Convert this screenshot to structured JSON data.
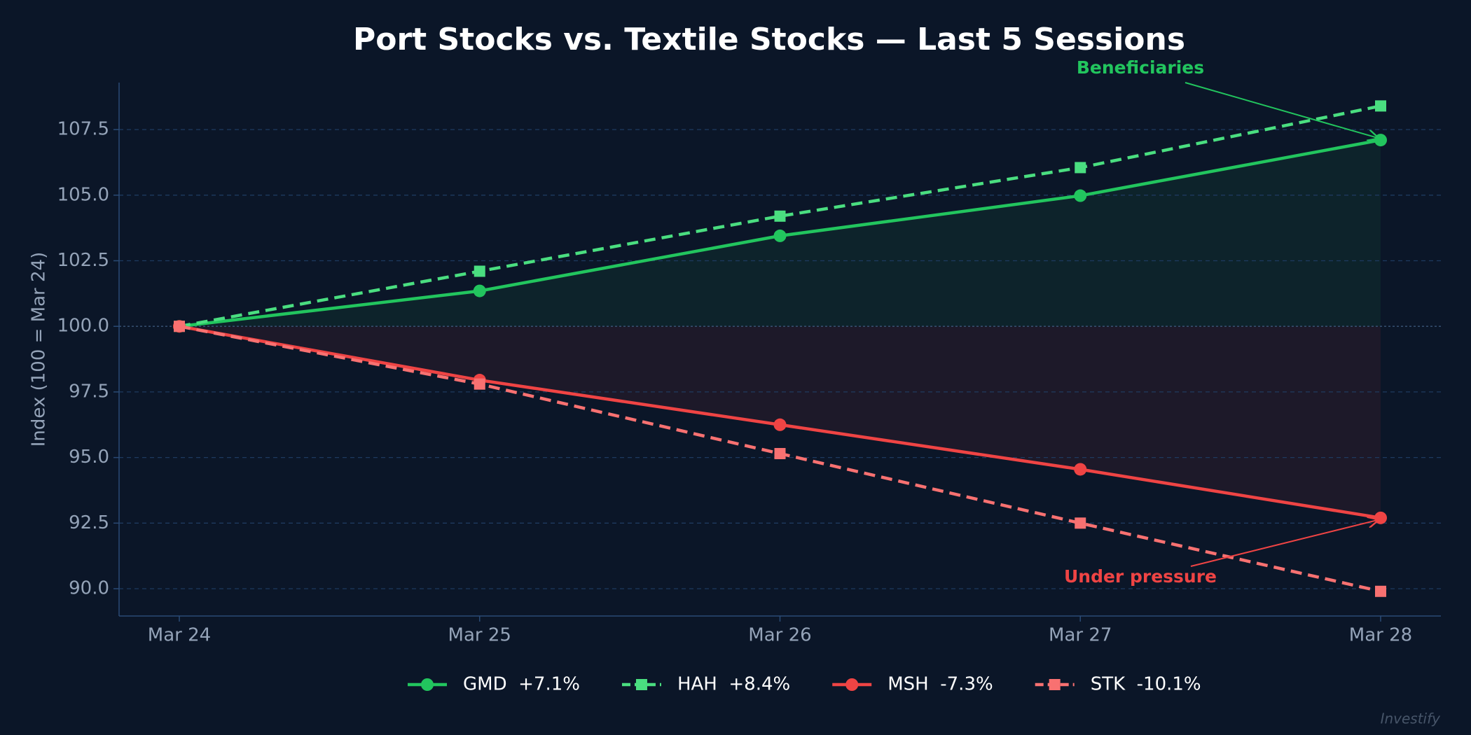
{
  "chart_data": {
    "type": "line",
    "title": "Port Stocks vs. Textile Stocks — Last 5 Sessions",
    "y_label": "Index (100 = Mar 24)",
    "categories": [
      "Mar 24",
      "Mar 25",
      "Mar 26",
      "Mar 27",
      "Mar 28"
    ],
    "series": [
      {
        "name": "GMD  +7.1%",
        "color": "#22c55e",
        "marker": "circle",
        "dashed": false,
        "values": [
          100,
          101.35,
          103.45,
          104.98,
          107.1
        ]
      },
      {
        "name": "HAH  +8.4%",
        "color": "#4ade80",
        "marker": "square",
        "dashed": true,
        "values": [
          100,
          102.1,
          104.2,
          106.05,
          108.4
        ]
      },
      {
        "name": "MSH  -7.3%",
        "color": "#ef4444",
        "marker": "circle",
        "dashed": false,
        "values": [
          100,
          97.95,
          96.25,
          94.55,
          92.7
        ]
      },
      {
        "name": "STK  -10.1%",
        "color": "#f87171",
        "marker": "square",
        "dashed": true,
        "values": [
          100,
          97.8,
          95.15,
          92.5,
          89.9
        ]
      }
    ],
    "ylim": [
      88.96,
      109.29
    ],
    "yticks": [
      {
        "value": 90,
        "label": "90.0"
      },
      {
        "value": 92.5,
        "label": "92.5"
      },
      {
        "value": 95,
        "label": "95.0"
      },
      {
        "value": 97.5,
        "label": "97.5"
      },
      {
        "value": 100,
        "label": "100.0"
      },
      {
        "value": 102.5,
        "label": "102.5"
      },
      {
        "value": 105,
        "label": "105.0"
      },
      {
        "value": 107.5,
        "label": "107.5"
      }
    ],
    "grid": true,
    "annotations": [
      {
        "text": "Beneficiaries",
        "color": "#22c55e"
      },
      {
        "text": "Under pressure",
        "color": "#ef4444"
      }
    ],
    "watermark": "Investify"
  }
}
